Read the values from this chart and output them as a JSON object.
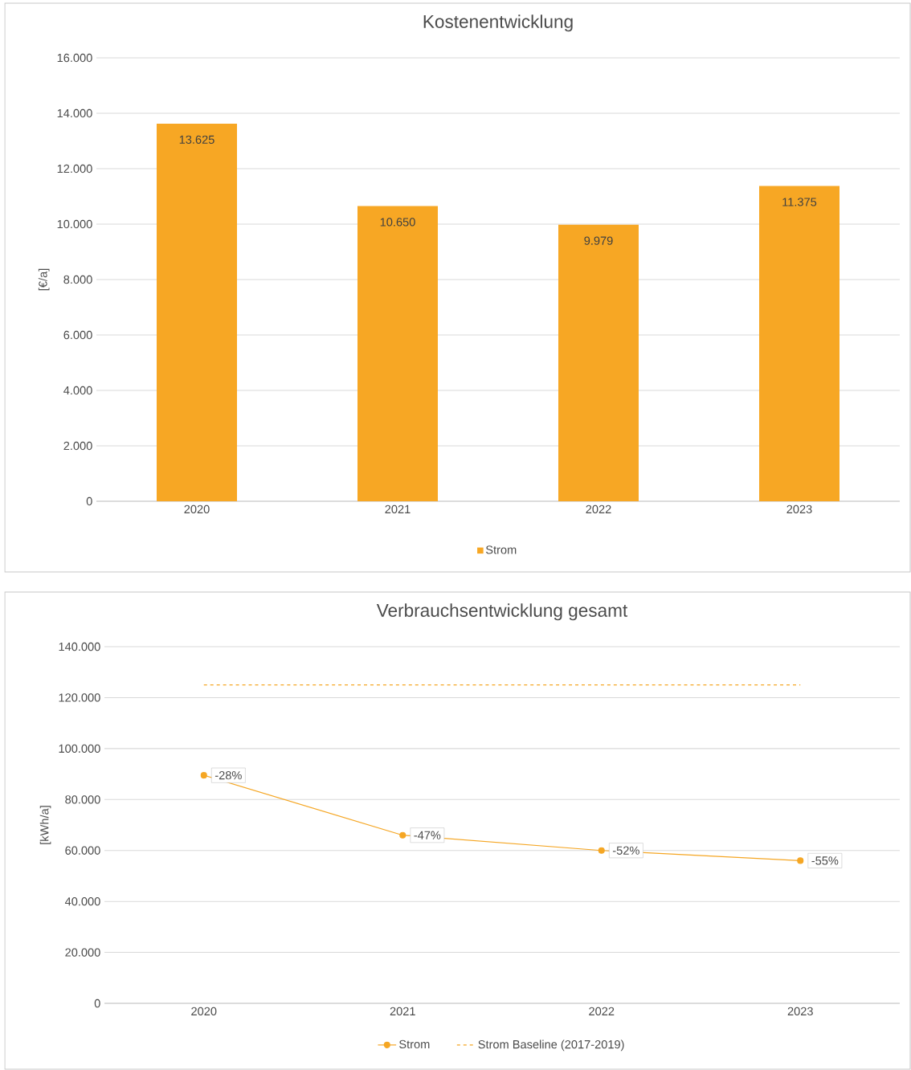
{
  "chart_data": [
    {
      "type": "bar",
      "title": "Kostenentwicklung",
      "ylabel": "[€/a]",
      "categories": [
        "2020",
        "2021",
        "2022",
        "2023"
      ],
      "series": [
        {
          "name": "Strom",
          "color": "#f7a724",
          "values": [
            13625,
            10650,
            9979,
            11375
          ],
          "value_labels": [
            "13.625",
            "10.650",
            "9.979",
            "11.375"
          ]
        }
      ],
      "ylim": [
        0,
        16000
      ],
      "yticks": [
        {
          "value": 0,
          "label": "0"
        },
        {
          "value": 2000,
          "label": "2.000"
        },
        {
          "value": 4000,
          "label": "4.000"
        },
        {
          "value": 6000,
          "label": "6.000"
        },
        {
          "value": 8000,
          "label": "8.000"
        },
        {
          "value": 10000,
          "label": "10.000"
        },
        {
          "value": 12000,
          "label": "12.000"
        },
        {
          "value": 14000,
          "label": "14.000"
        },
        {
          "value": 16000,
          "label": "16.000"
        }
      ],
      "grid": "y",
      "legend": "bottom"
    },
    {
      "type": "line",
      "title": "Verbrauchsentwicklung gesamt",
      "ylabel": "[kWh/a]",
      "categories": [
        "2020",
        "2021",
        "2022",
        "2023"
      ],
      "series": [
        {
          "name": "Strom",
          "color": "#f5a623",
          "marker": "circle",
          "line_style": "solid",
          "values": [
            89500,
            66000,
            60000,
            56000
          ]
        },
        {
          "name": "Strom Baseline (2017-2019)",
          "color": "#f5a623",
          "marker": "none",
          "line_style": "dashed",
          "values": [
            125000,
            125000,
            125000,
            125000
          ]
        }
      ],
      "annotations": [
        {
          "text": "-28%",
          "x": "2020",
          "y": 89500
        },
        {
          "text": "-47%",
          "x": "2021",
          "y": 66000
        },
        {
          "text": "-52%",
          "x": "2022",
          "y": 60000
        },
        {
          "text": "-55%",
          "x": "2023",
          "y": 56000
        }
      ],
      "ylim": [
        0,
        140000
      ],
      "yticks": [
        {
          "value": 0,
          "label": "0"
        },
        {
          "value": 20000,
          "label": "20.000"
        },
        {
          "value": 40000,
          "label": "40.000"
        },
        {
          "value": 60000,
          "label": "60.000"
        },
        {
          "value": 80000,
          "label": "80.000"
        },
        {
          "value": 100000,
          "label": "100.000"
        },
        {
          "value": 120000,
          "label": "120.000"
        },
        {
          "value": 140000,
          "label": "140.000"
        }
      ],
      "grid": "y",
      "legend": "bottom"
    }
  ]
}
